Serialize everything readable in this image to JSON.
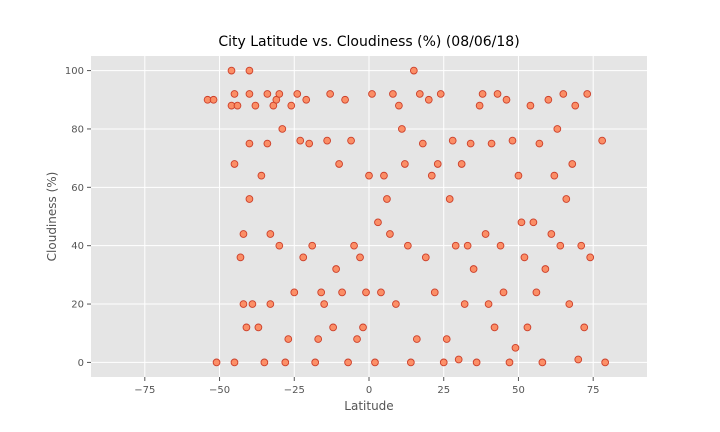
{
  "chart_data": {
    "type": "scatter",
    "title": "City Latitude vs. Cloudiness (%) (08/06/18)",
    "xlabel": "Latitude",
    "ylabel": "Cloudiness (%)",
    "xlim": [
      -93,
      93
    ],
    "ylim": [
      -5,
      105
    ],
    "xticks": [
      -75,
      -50,
      -25,
      0,
      25,
      50,
      75
    ],
    "yticks": [
      0,
      20,
      40,
      60,
      80,
      100
    ],
    "grid": true,
    "colors": {
      "background": "#e5e5e5",
      "grid": "#ffffff",
      "marker_fill": "#ff7f50",
      "marker_edge": "#cc3f2a"
    },
    "points": [
      {
        "x": -54,
        "y": 90
      },
      {
        "x": -52,
        "y": 90
      },
      {
        "x": -51,
        "y": 0
      },
      {
        "x": -46,
        "y": 100
      },
      {
        "x": -46,
        "y": 88
      },
      {
        "x": -45,
        "y": 92
      },
      {
        "x": -45,
        "y": 68
      },
      {
        "x": -45,
        "y": 0
      },
      {
        "x": -44,
        "y": 88
      },
      {
        "x": -43,
        "y": 36
      },
      {
        "x": -42,
        "y": 44
      },
      {
        "x": -42,
        "y": 20
      },
      {
        "x": -41,
        "y": 12
      },
      {
        "x": -40,
        "y": 100
      },
      {
        "x": -40,
        "y": 92
      },
      {
        "x": -40,
        "y": 75
      },
      {
        "x": -40,
        "y": 56
      },
      {
        "x": -39,
        "y": 20
      },
      {
        "x": -38,
        "y": 88
      },
      {
        "x": -37,
        "y": 12
      },
      {
        "x": -36,
        "y": 64
      },
      {
        "x": -35,
        "y": 0
      },
      {
        "x": -34,
        "y": 92
      },
      {
        "x": -34,
        "y": 75
      },
      {
        "x": -33,
        "y": 44
      },
      {
        "x": -33,
        "y": 20
      },
      {
        "x": -32,
        "y": 88
      },
      {
        "x": -31,
        "y": 90
      },
      {
        "x": -30,
        "y": 92
      },
      {
        "x": -30,
        "y": 40
      },
      {
        "x": -29,
        "y": 80
      },
      {
        "x": -28,
        "y": 0
      },
      {
        "x": -27,
        "y": 8
      },
      {
        "x": -26,
        "y": 88
      },
      {
        "x": -25,
        "y": 24
      },
      {
        "x": -24,
        "y": 92
      },
      {
        "x": -23,
        "y": 76
      },
      {
        "x": -22,
        "y": 36
      },
      {
        "x": -21,
        "y": 90
      },
      {
        "x": -20,
        "y": 75
      },
      {
        "x": -19,
        "y": 40
      },
      {
        "x": -18,
        "y": 0
      },
      {
        "x": -17,
        "y": 8
      },
      {
        "x": -16,
        "y": 24
      },
      {
        "x": -15,
        "y": 20
      },
      {
        "x": -14,
        "y": 76
      },
      {
        "x": -13,
        "y": 92
      },
      {
        "x": -12,
        "y": 12
      },
      {
        "x": -11,
        "y": 32
      },
      {
        "x": -10,
        "y": 68
      },
      {
        "x": -9,
        "y": 24
      },
      {
        "x": -8,
        "y": 90
      },
      {
        "x": -7,
        "y": 0
      },
      {
        "x": -6,
        "y": 76
      },
      {
        "x": -5,
        "y": 40
      },
      {
        "x": -4,
        "y": 8
      },
      {
        "x": -3,
        "y": 36
      },
      {
        "x": -2,
        "y": 12
      },
      {
        "x": -1,
        "y": 24
      },
      {
        "x": 0,
        "y": 64
      },
      {
        "x": 1,
        "y": 92
      },
      {
        "x": 2,
        "y": 0
      },
      {
        "x": 3,
        "y": 48
      },
      {
        "x": 4,
        "y": 24
      },
      {
        "x": 5,
        "y": 64
      },
      {
        "x": 6,
        "y": 56
      },
      {
        "x": 7,
        "y": 44
      },
      {
        "x": 8,
        "y": 92
      },
      {
        "x": 9,
        "y": 20
      },
      {
        "x": 10,
        "y": 88
      },
      {
        "x": 11,
        "y": 80
      },
      {
        "x": 12,
        "y": 68
      },
      {
        "x": 13,
        "y": 40
      },
      {
        "x": 14,
        "y": 0
      },
      {
        "x": 15,
        "y": 100
      },
      {
        "x": 16,
        "y": 8
      },
      {
        "x": 17,
        "y": 92
      },
      {
        "x": 18,
        "y": 75
      },
      {
        "x": 19,
        "y": 36
      },
      {
        "x": 20,
        "y": 90
      },
      {
        "x": 21,
        "y": 64
      },
      {
        "x": 22,
        "y": 24
      },
      {
        "x": 23,
        "y": 68
      },
      {
        "x": 24,
        "y": 92
      },
      {
        "x": 25,
        "y": 0
      },
      {
        "x": 26,
        "y": 8
      },
      {
        "x": 27,
        "y": 56
      },
      {
        "x": 28,
        "y": 76
      },
      {
        "x": 29,
        "y": 40
      },
      {
        "x": 30,
        "y": 1
      },
      {
        "x": 31,
        "y": 68
      },
      {
        "x": 32,
        "y": 20
      },
      {
        "x": 33,
        "y": 40
      },
      {
        "x": 34,
        "y": 75
      },
      {
        "x": 35,
        "y": 32
      },
      {
        "x": 36,
        "y": 0
      },
      {
        "x": 37,
        "y": 88
      },
      {
        "x": 38,
        "y": 92
      },
      {
        "x": 39,
        "y": 44
      },
      {
        "x": 40,
        "y": 20
      },
      {
        "x": 41,
        "y": 75
      },
      {
        "x": 42,
        "y": 12
      },
      {
        "x": 43,
        "y": 92
      },
      {
        "x": 44,
        "y": 40
      },
      {
        "x": 45,
        "y": 24
      },
      {
        "x": 46,
        "y": 90
      },
      {
        "x": 47,
        "y": 0
      },
      {
        "x": 48,
        "y": 76
      },
      {
        "x": 49,
        "y": 5
      },
      {
        "x": 50,
        "y": 64
      },
      {
        "x": 51,
        "y": 48
      },
      {
        "x": 52,
        "y": 36
      },
      {
        "x": 53,
        "y": 12
      },
      {
        "x": 54,
        "y": 88
      },
      {
        "x": 55,
        "y": 48
      },
      {
        "x": 56,
        "y": 24
      },
      {
        "x": 57,
        "y": 75
      },
      {
        "x": 58,
        "y": 0
      },
      {
        "x": 59,
        "y": 32
      },
      {
        "x": 60,
        "y": 90
      },
      {
        "x": 61,
        "y": 44
      },
      {
        "x": 62,
        "y": 64
      },
      {
        "x": 63,
        "y": 80
      },
      {
        "x": 64,
        "y": 40
      },
      {
        "x": 65,
        "y": 92
      },
      {
        "x": 66,
        "y": 56
      },
      {
        "x": 67,
        "y": 20
      },
      {
        "x": 68,
        "y": 68
      },
      {
        "x": 69,
        "y": 88
      },
      {
        "x": 70,
        "y": 1
      },
      {
        "x": 71,
        "y": 40
      },
      {
        "x": 72,
        "y": 12
      },
      {
        "x": 73,
        "y": 92
      },
      {
        "x": 74,
        "y": 36
      },
      {
        "x": 78,
        "y": 76
      },
      {
        "x": 79,
        "y": 0
      }
    ]
  }
}
